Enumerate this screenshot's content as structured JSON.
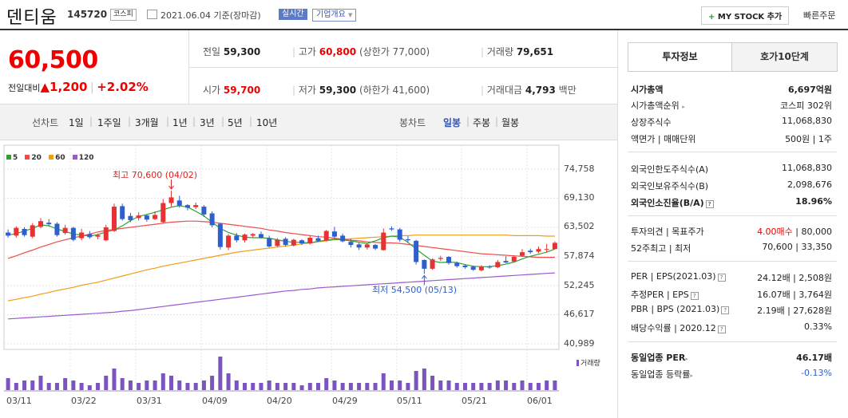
{
  "header": {
    "name": "덴티움",
    "code": "145720",
    "market": "코스피",
    "date": "2021.06.04 기준(장마감)",
    "realtime": "실시간",
    "company_info": "기업개요",
    "mystock_plus": "+",
    "mystock": "MY STOCK 추가",
    "quick_order": "빠른주문"
  },
  "price": {
    "current": "60,500",
    "change_label": "전일대비",
    "change_arrow": "▲",
    "change": "1,200",
    "sep": "|",
    "change_pct": "+2.02%"
  },
  "stats": {
    "prev_label": "전일",
    "prev": "59,300",
    "high_label": "고가",
    "high": "60,800",
    "upper_limit": "(상한가 77,000)",
    "volume_label": "거래량",
    "volume": "79,651",
    "open_label": "시가",
    "open": "59,700",
    "low_label": "저가",
    "low": "59,300",
    "lower_limit": "(하한가 41,600)",
    "amount_label": "거래대금",
    "amount": "4,793",
    "amount_unit": "백만"
  },
  "period_bar": {
    "line_label": "선차트",
    "line_periods": [
      "1일",
      "1주일",
      "3개월",
      "1년",
      "3년",
      "5년",
      "10년"
    ],
    "candle_label": "봉차트",
    "candle_periods": [
      "일봉",
      "주봉",
      "월봉"
    ],
    "candle_selected": "일봉"
  },
  "chart_data": {
    "type": "candlestick",
    "legend": [
      "5",
      "20",
      "60",
      "120"
    ],
    "ma_colors": {
      "5": "#2ea02e",
      "20": "#ef4b4b",
      "60": "#f39c12",
      "120": "#9b59d0"
    },
    "y_ticks": [
      "74,758",
      "69,130",
      "63,502",
      "57,874",
      "52,245",
      "46,617",
      "40,989"
    ],
    "x_ticks": [
      "03/11",
      "03/22",
      "03/31",
      "04/09",
      "04/20",
      "04/29",
      "05/11",
      "05/21",
      "06/01"
    ],
    "high_annotation": "최고 70,600 (04/02)",
    "low_annotation": "최저 54,500 (05/13)",
    "volume_label": "거래량",
    "up_color": "#e63232",
    "down_color": "#2d5fd0",
    "candles": [
      {
        "o": 62500,
        "c": 61900,
        "h": 63100,
        "l": 61500
      },
      {
        "o": 61900,
        "c": 63400,
        "h": 63700,
        "l": 61500
      },
      {
        "o": 63200,
        "c": 62000,
        "h": 63500,
        "l": 61700
      },
      {
        "o": 61700,
        "c": 63900,
        "h": 64300,
        "l": 61400
      },
      {
        "o": 63600,
        "c": 64700,
        "h": 65300,
        "l": 63300
      },
      {
        "o": 64400,
        "c": 64100,
        "h": 65100,
        "l": 63700
      },
      {
        "o": 64200,
        "c": 62000,
        "h": 64500,
        "l": 61700
      },
      {
        "o": 62400,
        "c": 63400,
        "h": 64000,
        "l": 62100
      },
      {
        "o": 63400,
        "c": 61100,
        "h": 63600,
        "l": 60800
      },
      {
        "o": 61400,
        "c": 62500,
        "h": 63200,
        "l": 61000
      },
      {
        "o": 62200,
        "c": 61600,
        "h": 62800,
        "l": 61300
      },
      {
        "o": 61700,
        "c": 62000,
        "h": 62300,
        "l": 61200
      },
      {
        "o": 61000,
        "c": 63500,
        "h": 64000,
        "l": 60800
      },
      {
        "o": 62800,
        "c": 67500,
        "h": 68100,
        "l": 62600
      },
      {
        "o": 67600,
        "c": 65100,
        "h": 68100,
        "l": 64800
      },
      {
        "o": 65700,
        "c": 64900,
        "h": 66300,
        "l": 64500
      },
      {
        "o": 65300,
        "c": 65800,
        "h": 66400,
        "l": 64800
      },
      {
        "o": 65800,
        "c": 65000,
        "h": 66000,
        "l": 64600
      },
      {
        "o": 65100,
        "c": 65900,
        "h": 66600,
        "l": 64900
      },
      {
        "o": 64500,
        "c": 68200,
        "h": 69000,
        "l": 64300
      },
      {
        "o": 68200,
        "c": 69300,
        "h": 70600,
        "l": 67500
      },
      {
        "o": 68700,
        "c": 67700,
        "h": 69600,
        "l": 67300
      },
      {
        "o": 67800,
        "c": 67300,
        "h": 68000,
        "l": 66800
      },
      {
        "o": 67400,
        "c": 67800,
        "h": 68300,
        "l": 67000
      },
      {
        "o": 67500,
        "c": 66000,
        "h": 67800,
        "l": 65500
      },
      {
        "o": 66200,
        "c": 63900,
        "h": 66600,
        "l": 63500
      },
      {
        "o": 64200,
        "c": 59700,
        "h": 64300,
        "l": 59200
      },
      {
        "o": 59600,
        "c": 61900,
        "h": 62200,
        "l": 59100
      },
      {
        "o": 61900,
        "c": 61000,
        "h": 62400,
        "l": 60600
      },
      {
        "o": 61000,
        "c": 62100,
        "h": 62300,
        "l": 60600
      },
      {
        "o": 61900,
        "c": 62200,
        "h": 62400,
        "l": 61600
      },
      {
        "o": 62200,
        "c": 61500,
        "h": 62700,
        "l": 61300
      },
      {
        "o": 61400,
        "c": 59800,
        "h": 61900,
        "l": 59600
      },
      {
        "o": 59900,
        "c": 61100,
        "h": 61400,
        "l": 59700
      },
      {
        "o": 61300,
        "c": 60100,
        "h": 61600,
        "l": 59800
      },
      {
        "o": 60000,
        "c": 61100,
        "h": 61300,
        "l": 59800
      },
      {
        "o": 61000,
        "c": 60400,
        "h": 61200,
        "l": 60100
      },
      {
        "o": 60400,
        "c": 61500,
        "h": 61800,
        "l": 60200
      },
      {
        "o": 61400,
        "c": 60900,
        "h": 61900,
        "l": 60700
      },
      {
        "o": 61000,
        "c": 62800,
        "h": 63000,
        "l": 60800
      },
      {
        "o": 62700,
        "c": 61700,
        "h": 63600,
        "l": 61300
      },
      {
        "o": 61900,
        "c": 60800,
        "h": 62300,
        "l": 60600
      },
      {
        "o": 60700,
        "c": 60100,
        "h": 61300,
        "l": 59600
      },
      {
        "o": 60200,
        "c": 59600,
        "h": 60500,
        "l": 59100
      },
      {
        "o": 59600,
        "c": 60200,
        "h": 60400,
        "l": 59200
      },
      {
        "o": 60100,
        "c": 59400,
        "h": 60300,
        "l": 59100
      },
      {
        "o": 59100,
        "c": 62500,
        "h": 63300,
        "l": 59000
      },
      {
        "o": 63300,
        "c": 63100,
        "h": 63700,
        "l": 62800
      },
      {
        "o": 63100,
        "c": 61100,
        "h": 63400,
        "l": 60700
      },
      {
        "o": 61200,
        "c": 61000,
        "h": 61800,
        "l": 60600
      },
      {
        "o": 60900,
        "c": 56800,
        "h": 61100,
        "l": 56300
      },
      {
        "o": 57200,
        "c": 55500,
        "h": 57300,
        "l": 54500
      },
      {
        "o": 55500,
        "c": 57300,
        "h": 57500,
        "l": 55300
      },
      {
        "o": 57400,
        "c": 57600,
        "h": 58000,
        "l": 57000
      },
      {
        "o": 57800,
        "c": 56600,
        "h": 57900,
        "l": 56300
      },
      {
        "o": 56600,
        "c": 56000,
        "h": 56900,
        "l": 55700
      },
      {
        "o": 56100,
        "c": 55800,
        "h": 56300,
        "l": 55500
      },
      {
        "o": 55900,
        "c": 55300,
        "h": 56100,
        "l": 55100
      },
      {
        "o": 55200,
        "c": 55900,
        "h": 56200,
        "l": 55000
      },
      {
        "o": 55900,
        "c": 55800,
        "h": 56200,
        "l": 55500
      },
      {
        "o": 55800,
        "c": 56800,
        "h": 57200,
        "l": 55600
      },
      {
        "o": 57000,
        "c": 56700,
        "h": 57900,
        "l": 56600
      },
      {
        "o": 56900,
        "c": 57800,
        "h": 58100,
        "l": 56700
      },
      {
        "o": 58000,
        "c": 58700,
        "h": 59300,
        "l": 57800
      },
      {
        "o": 59000,
        "c": 58700,
        "h": 59400,
        "l": 58400
      },
      {
        "o": 58800,
        "c": 59300,
        "h": 59800,
        "l": 58500
      },
      {
        "o": 59300,
        "c": 59300,
        "h": 60300,
        "l": 58600
      },
      {
        "o": 59300,
        "c": 60500,
        "h": 60800,
        "l": 59300
      }
    ],
    "ma5": [
      62000,
      62300,
      62800,
      63300,
      64000,
      63800,
      63200,
      62700,
      62200,
      62000,
      61800,
      62100,
      62600,
      63000,
      63800,
      64800,
      65600,
      66000,
      66400,
      66900,
      67400,
      67700,
      67400,
      66600,
      65700,
      64500,
      63300,
      62500,
      62000,
      61600,
      61500,
      61500,
      61400,
      61100,
      60800,
      60600,
      60600,
      60500,
      60800,
      61000,
      61200,
      61100,
      60900,
      60600,
      60400,
      60900,
      61500,
      61800,
      61600,
      60600,
      59300,
      58100,
      57000,
      56700,
      56800,
      56700,
      56300,
      56000,
      55900,
      55900,
      56100,
      56400,
      56800,
      57400,
      57900,
      58300,
      58700,
      59300
    ],
    "ma20": [
      57500,
      58000,
      58600,
      59100,
      59700,
      60200,
      60700,
      61100,
      61500,
      61800,
      62200,
      62600,
      62900,
      63100,
      63300,
      63500,
      63700,
      63900,
      64100,
      64300,
      64500,
      64600,
      64700,
      64700,
      64600,
      64500,
      64300,
      64100,
      63900,
      63700,
      63500,
      63300,
      63000,
      62800,
      62500,
      62300,
      62100,
      61900,
      61700,
      61600,
      61400,
      61200,
      61000,
      60900,
      60700,
      60600,
      60500,
      60500,
      60400,
      60200,
      60000,
      59800,
      59600,
      59400,
      59200,
      59000,
      58800,
      58600,
      58400,
      58300,
      58200,
      58100,
      58000,
      57900,
      57800,
      57700,
      57700,
      57700
    ],
    "ma60": [
      49300,
      49600,
      49900,
      50200,
      50600,
      50900,
      51300,
      51600,
      51900,
      52300,
      52600,
      52900,
      53300,
      53700,
      54100,
      54500,
      54900,
      55300,
      55600,
      56000,
      56300,
      56600,
      56900,
      57200,
      57500,
      57800,
      58100,
      58400,
      58700,
      58900,
      59100,
      59300,
      59500,
      59700,
      59900,
      60100,
      60300,
      60500,
      60700,
      60900,
      61100,
      61200,
      61300,
      61400,
      61500,
      61600,
      61700,
      61800,
      61900,
      61900,
      62000,
      62000,
      62000,
      62000,
      62000,
      62000,
      62000,
      62000,
      62000,
      62000,
      62000,
      62000,
      61900,
      61900,
      61900,
      61900,
      61800,
      61800
    ],
    "ma120": [
      45800,
      45900,
      46000,
      46100,
      46200,
      46300,
      46400,
      46500,
      46600,
      46700,
      46800,
      46900,
      47000,
      47100,
      47300,
      47400,
      47600,
      47800,
      48000,
      48200,
      48400,
      48600,
      48800,
      49000,
      49200,
      49400,
      49600,
      49800,
      50000,
      50200,
      50400,
      50600,
      50800,
      51000,
      51200,
      51300,
      51500,
      51600,
      51800,
      51900,
      52000,
      52100,
      52200,
      52300,
      52400,
      52500,
      52600,
      52700,
      52800,
      52900,
      53000,
      53100,
      53200,
      53300,
      53400,
      53500,
      53600,
      53700,
      53800,
      53900,
      54000,
      54100,
      54200,
      54300,
      54400,
      54500,
      54600,
      54700
    ],
    "volumes": [
      5,
      3,
      4,
      4,
      6,
      3,
      3,
      5,
      4,
      3,
      2,
      3,
      6,
      9,
      5,
      4,
      3,
      4,
      4,
      7,
      6,
      4,
      3,
      3,
      4,
      6,
      14,
      7,
      4,
      3,
      3,
      3,
      4,
      3,
      3,
      3,
      2,
      3,
      3,
      5,
      4,
      3,
      3,
      3,
      3,
      3,
      7,
      4,
      4,
      3,
      8,
      9,
      6,
      4,
      4,
      3,
      3,
      3,
      3,
      3,
      4,
      4,
      3,
      4,
      3,
      3,
      4,
      4
    ]
  },
  "right_panel": {
    "tabs": [
      "투자정보",
      "호가10단계"
    ],
    "market_cap_label": "시가총액",
    "market_cap": "6,697억원",
    "rank_label": "시가총액순위",
    "rank": "코스피 302위",
    "shares_label": "상장주식수",
    "shares": "11,068,830",
    "par_label": "액면가 | 매매단위",
    "par": "500원 | 1주",
    "foreign_limit_label": "외국인한도주식수(A)",
    "foreign_limit": "11,068,830",
    "foreign_hold_label": "외국인보유주식수(B)",
    "foreign_hold": "2,098,676",
    "foreign_rate_label": "외국인소진율(B/A)",
    "foreign_rate": "18.96%",
    "opinion_label": "투자의견 | 목표주가",
    "opinion": "4.00매수",
    "target": "| 80,000",
    "week52_label": "52주최고 | 최저",
    "week52": "70,600 | 33,350",
    "per_label": "PER | EPS(2021.03)",
    "per": "24.12배 | 2,508원",
    "est_per_label": "추정PER | EPS",
    "est_per": "16.07배 | 3,764원",
    "pbr_label": "PBR | BPS (2021.03)",
    "pbr": "2.19배 | 27,628원",
    "dividend_label": "배당수익률 | 2020.12",
    "dividend": "0.33%",
    "sector_per_label": "동일업종 PER",
    "sector_per": "46.17배",
    "sector_rate_label": "동일업종 등락률",
    "sector_rate": "-0.13%"
  }
}
